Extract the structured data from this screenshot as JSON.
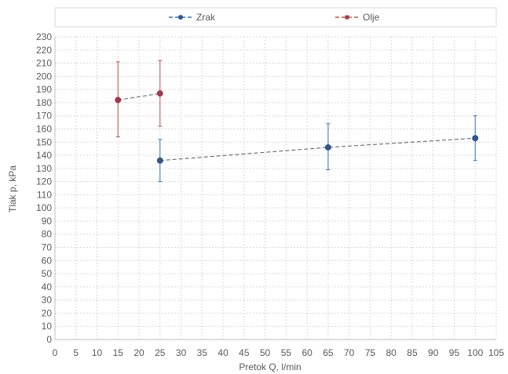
{
  "chart_data": {
    "type": "line",
    "xlabel": "Pretok Q, l/min",
    "ylabel": "Tlak p, kPa",
    "xlim": [
      0,
      105
    ],
    "ylim": [
      0,
      230
    ],
    "x_ticks": [
      0,
      5,
      10,
      15,
      20,
      25,
      30,
      35,
      40,
      45,
      50,
      55,
      60,
      65,
      70,
      75,
      80,
      85,
      90,
      95,
      100,
      105
    ],
    "y_ticks": [
      0,
      10,
      20,
      30,
      40,
      50,
      60,
      70,
      80,
      90,
      100,
      110,
      120,
      130,
      140,
      150,
      160,
      170,
      180,
      190,
      200,
      210,
      220,
      230
    ],
    "grid": true,
    "legend_position": "top",
    "series": [
      {
        "name": "Zrak",
        "color": "#2e75b6",
        "line_style": "dashed",
        "x": [
          25,
          65,
          100
        ],
        "y": [
          136,
          146,
          153
        ],
        "error_low": [
          120,
          129,
          136
        ],
        "error_high": [
          152,
          164,
          170
        ]
      },
      {
        "name": "Olje",
        "color": "#c0504d",
        "line_style": "dashed",
        "x": [
          15,
          25
        ],
        "y": [
          182,
          187
        ],
        "error_low": [
          154,
          162
        ],
        "error_high": [
          211,
          212
        ]
      }
    ]
  }
}
